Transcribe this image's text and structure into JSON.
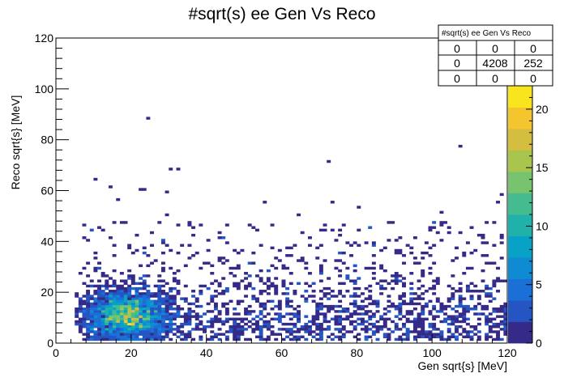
{
  "chart_data": {
    "type": "heatmap",
    "title": "#sqrt(s) ee Gen Vs Reco",
    "xlabel": "Gen  sqrt{s} [MeV]",
    "ylabel": "Reco  sqrt{s} [MeV]",
    "xlim": [
      0,
      120
    ],
    "ylim": [
      0,
      120
    ],
    "x_ticks": [
      "0",
      "20",
      "40",
      "60",
      "80",
      "100",
      "120"
    ],
    "y_ticks": [
      "0",
      "20",
      "40",
      "60",
      "80",
      "100",
      "120"
    ],
    "z_range": [
      0,
      22
    ],
    "z_ticks": [
      "0",
      "5",
      "10",
      "15",
      "20"
    ],
    "bin_size": 1,
    "distribution": {
      "core_center": [
        19,
        11
      ],
      "high_count_bins": [
        {
          "x": 19,
          "y": 7,
          "count": 22
        },
        {
          "x": 18,
          "y": 10,
          "count": 18
        },
        {
          "x": 20,
          "y": 12,
          "count": 17
        },
        {
          "x": 17,
          "y": 13,
          "count": 15
        },
        {
          "x": 13,
          "y": 9,
          "count": 14
        },
        {
          "x": 21,
          "y": 16,
          "count": 13
        }
      ],
      "outliers": [
        {
          "x": 24,
          "y": 88
        },
        {
          "x": 107,
          "y": 77
        },
        {
          "x": 72,
          "y": 71
        },
        {
          "x": 30,
          "y": 68
        },
        {
          "x": 32,
          "y": 68
        },
        {
          "x": 10,
          "y": 64
        },
        {
          "x": 14,
          "y": 61
        },
        {
          "x": 22,
          "y": 60
        },
        {
          "x": 23,
          "y": 60
        },
        {
          "x": 29,
          "y": 59
        },
        {
          "x": 16,
          "y": 56
        },
        {
          "x": 55,
          "y": 55
        },
        {
          "x": 73,
          "y": 55
        },
        {
          "x": 117,
          "y": 55
        },
        {
          "x": 118,
          "y": 58
        },
        {
          "x": 80,
          "y": 53
        },
        {
          "x": 102,
          "y": 51
        },
        {
          "x": 64,
          "y": 50
        }
      ]
    },
    "stats_box": {
      "title": "#sqrt(s) ee Gen Vs Reco",
      "rows": [
        [
          "0",
          "0",
          "0"
        ],
        [
          "0",
          "4208",
          "252"
        ],
        [
          "0",
          "0",
          "0"
        ]
      ]
    },
    "palette": [
      "#352a87",
      "#2455c3",
      "#1a70d7",
      "#0f8bd4",
      "#07a2c5",
      "#1fb1aa",
      "#44bc8f",
      "#78c36d",
      "#a9c54d",
      "#d5bd40",
      "#f5c52f",
      "#f9e51d"
    ],
    "colorbar_side": "right"
  }
}
